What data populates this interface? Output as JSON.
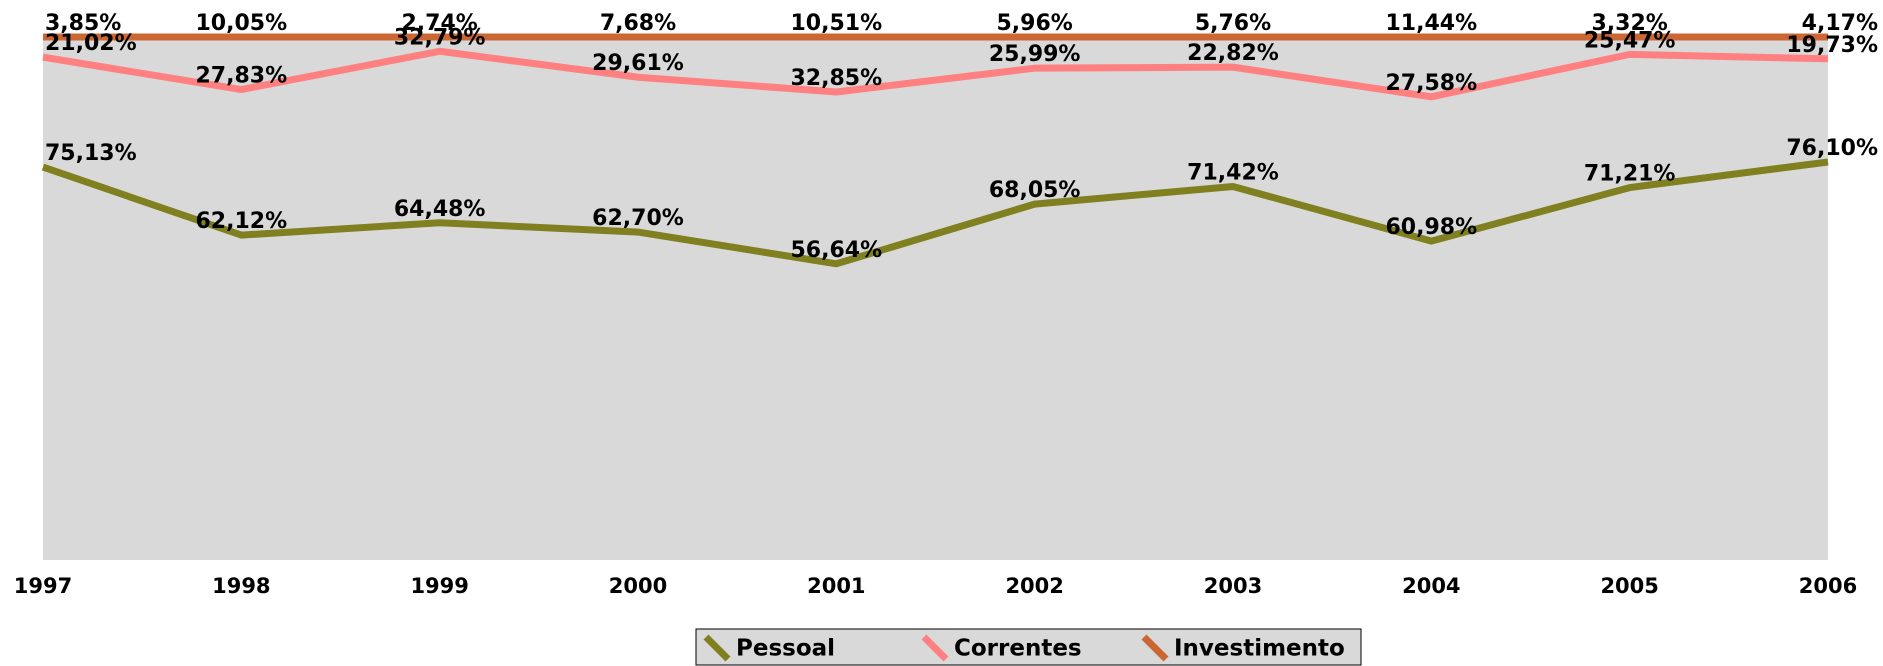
{
  "chart_data": {
    "type": "line",
    "stacked": true,
    "categories": [
      "1997",
      "1998",
      "1999",
      "2000",
      "2001",
      "2002",
      "2003",
      "2004",
      "2005",
      "2006"
    ],
    "ylim": [
      0,
      100
    ],
    "legend": "bottom",
    "plot_background": "#d9d9d9",
    "series": [
      {
        "name": "Pessoal",
        "color": "#808020",
        "values": [
          75.13,
          62.12,
          64.48,
          62.7,
          56.64,
          68.05,
          71.42,
          60.98,
          71.21,
          76.1
        ],
        "value_labels": [
          "75,13%",
          "62,12%",
          "64,48%",
          "62,70%",
          "56,64%",
          "68,05%",
          "71,42%",
          "60,98%",
          "71,21%",
          "76,10%"
        ]
      },
      {
        "name": "Correntes",
        "color": "#ff8080",
        "values": [
          21.02,
          27.83,
          32.79,
          29.61,
          32.85,
          25.99,
          22.82,
          27.58,
          25.47,
          19.73
        ],
        "value_labels": [
          "21,02%",
          "27,83%",
          "32,79%",
          "29,61%",
          "32,85%",
          "25,99%",
          "22,82%",
          "27,58%",
          "25,47%",
          "19,73%"
        ]
      },
      {
        "name": "Investimento",
        "color": "#cc6633",
        "values": [
          3.85,
          10.05,
          2.74,
          7.68,
          10.51,
          5.96,
          5.76,
          11.44,
          3.32,
          4.17
        ],
        "value_labels": [
          "3,85%",
          "10,05%",
          "2,74%",
          "7,68%",
          "10,51%",
          "5,96%",
          "5,76%",
          "11,44%",
          "3,32%",
          "4,17%"
        ]
      }
    ]
  }
}
